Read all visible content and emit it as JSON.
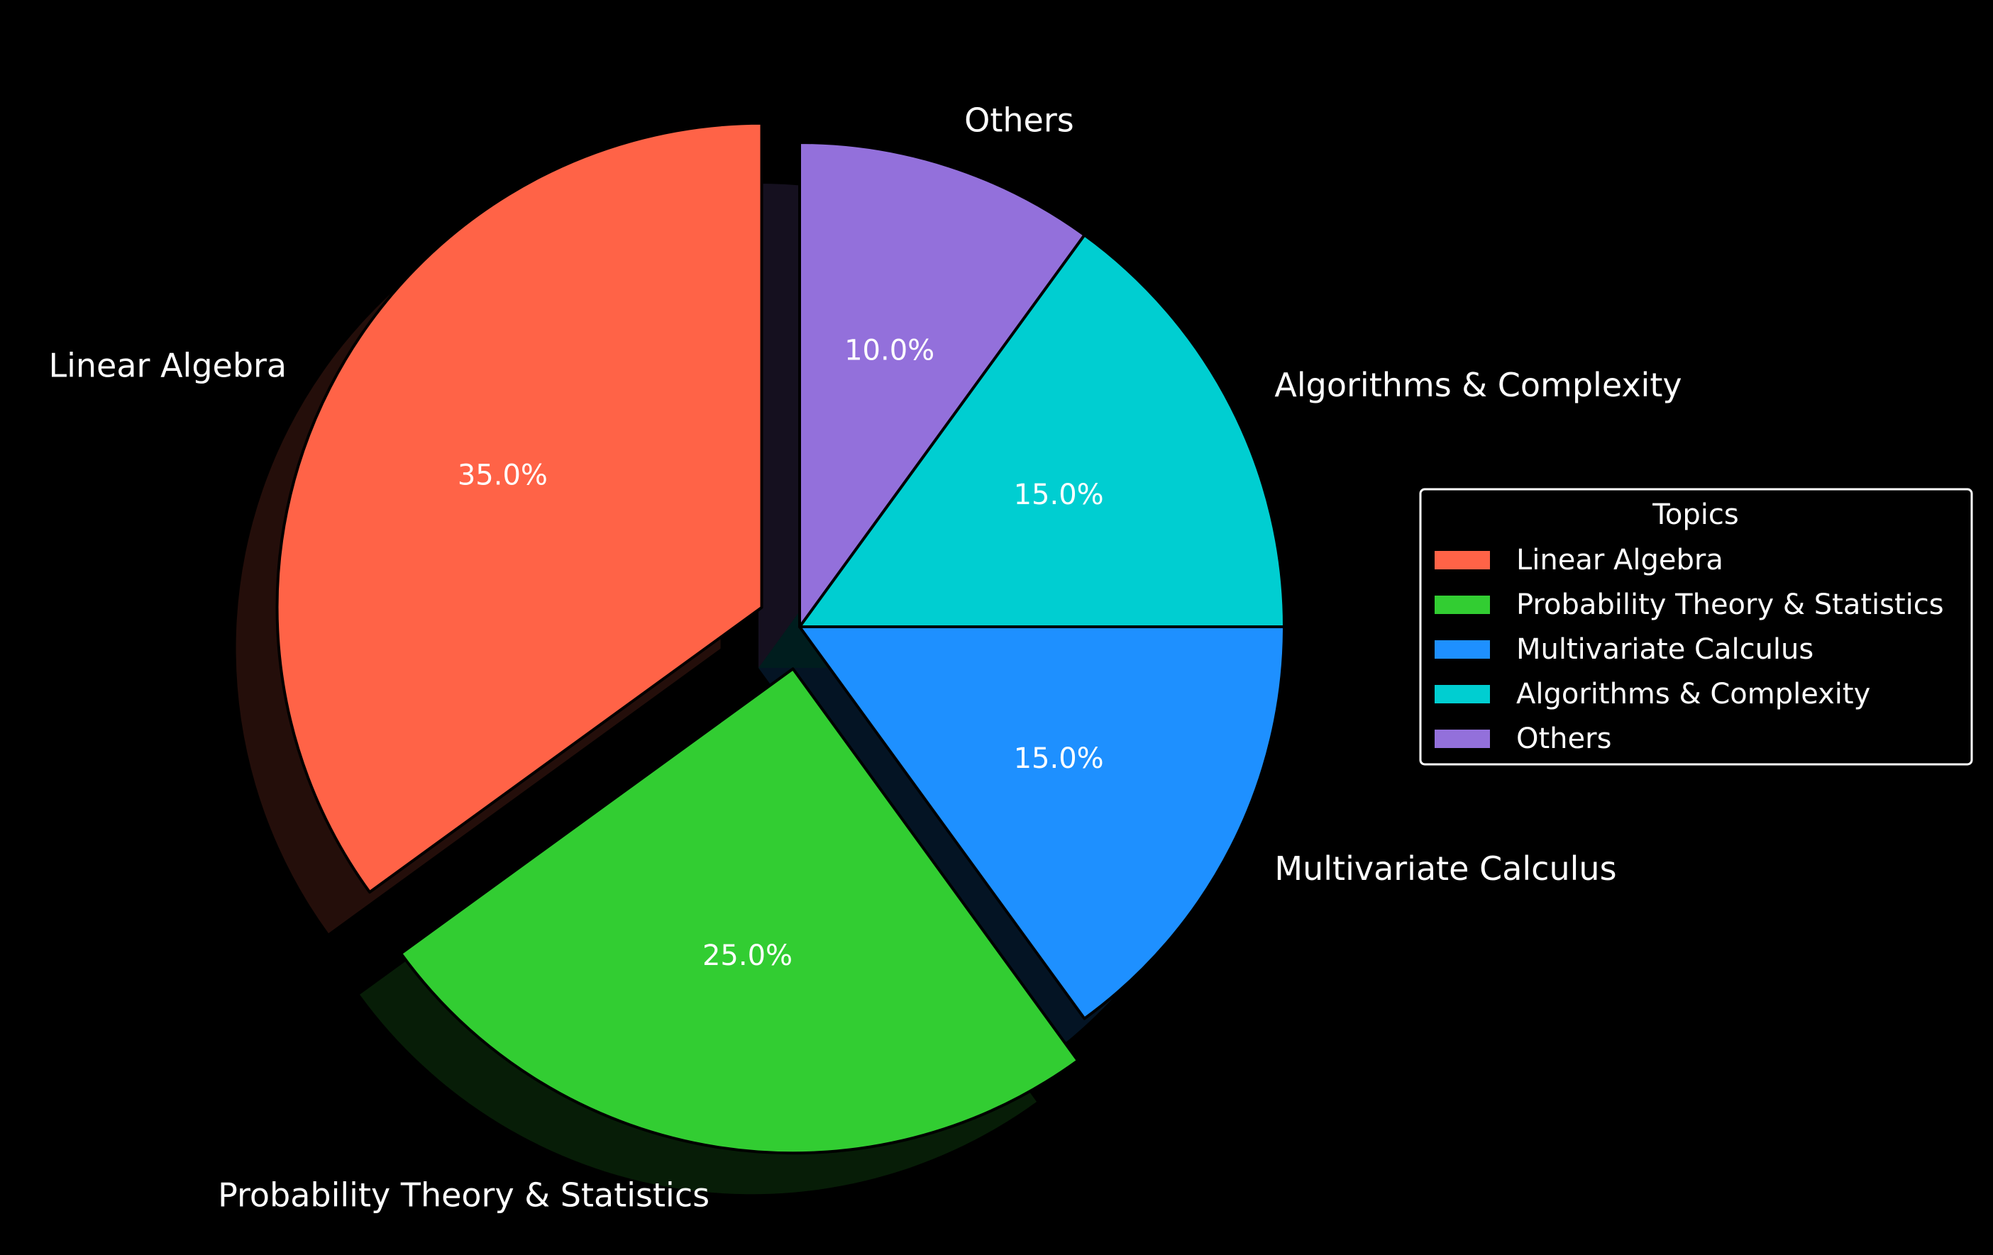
{
  "chart_data": {
    "type": "pie",
    "categories": [
      "Linear Algebra",
      "Probability Theory & Statistics",
      "Multivariate Calculus",
      "Algorithms & Complexity",
      "Others"
    ],
    "values": [
      35.0,
      25.0,
      15.0,
      15.0,
      10.0
    ],
    "percent_labels": [
      "35.0%",
      "25.0%",
      "15.0%",
      "15.0%",
      "10.0%"
    ],
    "colors": [
      "#FF6347",
      "#32CD32",
      "#1E90FF",
      "#00CED1",
      "#9370DB"
    ],
    "exploded": [
      true,
      true,
      false,
      false,
      false
    ],
    "start_angle": 90,
    "direction": "counterclockwise",
    "shadow": true,
    "legend": {
      "title": "Topics",
      "placement": "right",
      "entries": [
        "Linear Algebra",
        "Probability Theory & Statistics",
        "Multivariate Calculus",
        "Algorithms & Complexity",
        "Others"
      ]
    },
    "background": "#000000"
  }
}
